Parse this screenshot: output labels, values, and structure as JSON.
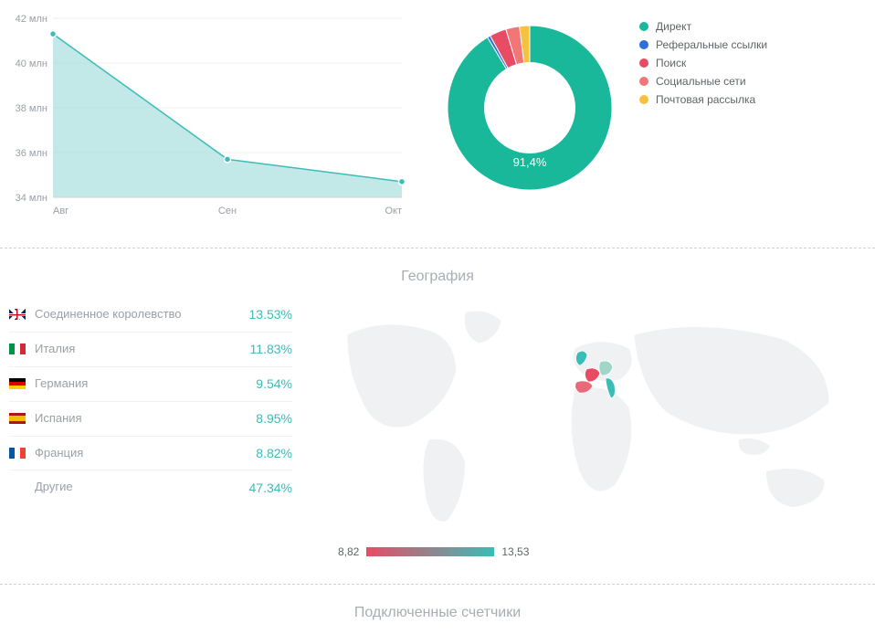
{
  "line_chart": {
    "type": "area-line",
    "x_labels": [
      "Авг",
      "Сен",
      "Окт"
    ],
    "y_ticks": [
      34,
      36,
      38,
      40,
      42
    ],
    "y_tick_suffix": " млн",
    "values": [
      41.3,
      35.7,
      34.7
    ],
    "ylim": [
      34,
      42
    ],
    "line_color": "#3abdb7",
    "fill_color": "#a8e0dd",
    "marker_color": "#3abdb7",
    "grid_color": "#eceff1",
    "axis_label_color": "#9aa0a6",
    "axis_label_fontsize": 11,
    "background_color": "#ffffff"
  },
  "donut": {
    "type": "donut",
    "center_label": "91,4%",
    "inner_radius_ratio": 0.55,
    "background_color": "#ffffff",
    "legend_fontsize": 12,
    "slices": [
      {
        "label": "Директ",
        "value": 91.4,
        "color": "#19b89a"
      },
      {
        "label": "Реферальные ссылки",
        "value": 0.6,
        "color": "#2e6fdb"
      },
      {
        "label": "Поиск",
        "value": 3.3,
        "color": "#e84c64"
      },
      {
        "label": "Социальные сети",
        "value": 2.7,
        "color": "#f27676"
      },
      {
        "label": "Почтовая рассылка",
        "value": 2.0,
        "color": "#f6c23e"
      }
    ]
  },
  "geo": {
    "title": "География",
    "label_color": "#9aa0a6",
    "pct_color": "#3abdb7",
    "label_fontsize": 13,
    "pct_fontsize": 14,
    "rows": [
      {
        "flag": "uk",
        "label": "Соединенное королевство",
        "pct": "13.53%"
      },
      {
        "flag": "it",
        "label": "Италия",
        "pct": "11.83%"
      },
      {
        "flag": "de",
        "label": "Германия",
        "pct": "9.54%"
      },
      {
        "flag": "es",
        "label": "Испания",
        "pct": "8.95%"
      },
      {
        "flag": "fr",
        "label": "Франция",
        "pct": "8.82%"
      },
      {
        "flag": "",
        "label": "Другие",
        "pct": "47.34%"
      }
    ],
    "gradient": {
      "min_label": "8,82",
      "max_label": "13,53",
      "min_color": "#e84c64",
      "max_color": "#3abdb7"
    },
    "map": {
      "land_color": "#f0f1f2",
      "border_color": "#ffffff",
      "highlights": [
        {
          "country": "uk",
          "color": "#3abdb7"
        },
        {
          "country": "it",
          "color": "#3abdb7"
        },
        {
          "country": "de",
          "color": "#9fd6c8"
        },
        {
          "country": "es",
          "color": "#e86a7a"
        },
        {
          "country": "fr",
          "color": "#e84c64"
        }
      ]
    }
  },
  "counters": {
    "title": "Подключенные счетчики"
  }
}
